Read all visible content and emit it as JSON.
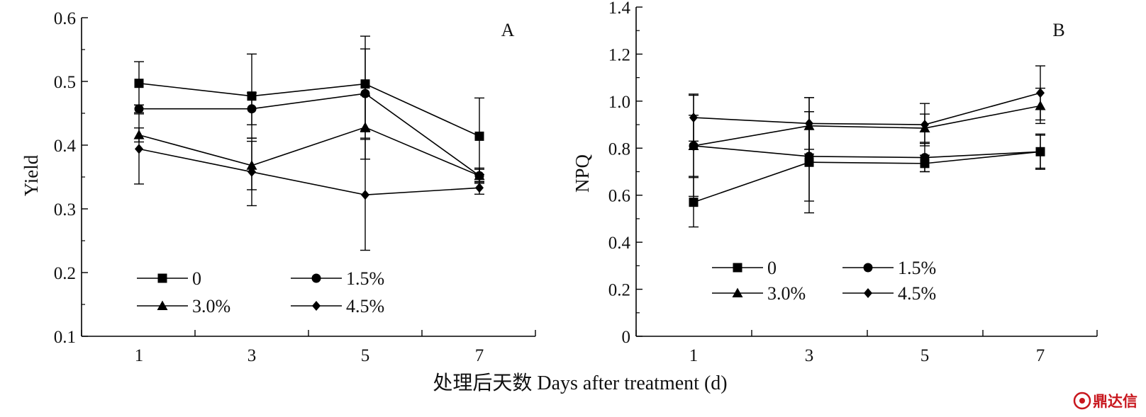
{
  "shared_xlabel": "处理后天数 Days after treatment (d)",
  "watermark": "鼎达信",
  "chart_data": [
    {
      "type": "line",
      "panel": "A",
      "xlabel": "",
      "ylabel": "Yield",
      "x": [
        1,
        3,
        5,
        7
      ],
      "xticks": [
        "1",
        "3",
        "5",
        "7"
      ],
      "ylim": [
        0.1,
        0.6
      ],
      "yticks": [
        "0.1",
        "0.2",
        "0.3",
        "0.4",
        "0.5",
        "0.6"
      ],
      "grid": false,
      "legend_position": "bottom-left",
      "series": [
        {
          "name": "0",
          "marker": "square",
          "values": [
            0.497,
            0.477,
            0.496,
            0.414
          ],
          "errors": [
            0.034,
            0.066,
            0.075,
            0.06
          ]
        },
        {
          "name": "1.5%",
          "marker": "circle",
          "values": [
            0.457,
            0.457,
            0.481,
            0.352
          ],
          "errors": [
            0.006,
            0.025,
            0.07,
            0.012
          ]
        },
        {
          "name": "3.0%",
          "marker": "triangle",
          "values": [
            0.416,
            0.368,
            0.428,
            0.352
          ],
          "errors": [
            0.011,
            0.038,
            0.05,
            0.01
          ]
        },
        {
          "name": "4.5%",
          "marker": "diamond",
          "values": [
            0.394,
            0.358,
            0.322,
            0.333
          ],
          "errors": [
            0.055,
            0.053,
            0.087,
            0.01
          ]
        }
      ]
    },
    {
      "type": "line",
      "panel": "B",
      "xlabel": "",
      "ylabel": "NPQ",
      "x": [
        1,
        3,
        5,
        7
      ],
      "xticks": [
        "1",
        "3",
        "5",
        "7"
      ],
      "ylim": [
        0,
        1.4
      ],
      "yticks": [
        "0",
        "0.2",
        "0.4",
        "0.6",
        "0.8",
        "1.0",
        "1.2",
        "1.4"
      ],
      "grid": false,
      "legend_position": "bottom-left",
      "series": [
        {
          "name": "0",
          "marker": "square",
          "values": [
            0.57,
            0.74,
            0.735,
            0.785
          ],
          "errors": [
            0.105,
            0.215,
            0.035,
            0.075
          ]
        },
        {
          "name": "1.5%",
          "marker": "circle",
          "values": [
            0.81,
            0.765,
            0.76,
            0.785
          ],
          "errors": [
            0.215,
            0.19,
            0.06,
            0.07
          ]
        },
        {
          "name": "3.0%",
          "marker": "triangle",
          "values": [
            0.81,
            0.895,
            0.885,
            0.98
          ],
          "errors": [
            0.13,
            0.12,
            0.06,
            0.075
          ]
        },
        {
          "name": "4.5%",
          "marker": "diamond",
          "values": [
            0.93,
            0.905,
            0.9,
            1.035
          ],
          "errors": [
            0.1,
            0.11,
            0.09,
            0.115
          ]
        }
      ]
    }
  ]
}
